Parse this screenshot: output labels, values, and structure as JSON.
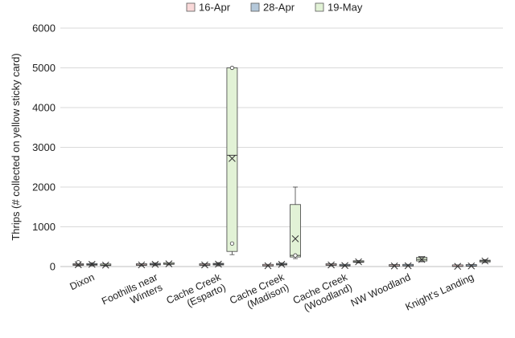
{
  "chart_data": {
    "type": "box",
    "ylabel": "Thrips (# collected on yellow sticky card)",
    "ylim": [
      0,
      6000
    ],
    "yticks": [
      "0",
      "1000",
      "2000",
      "3000",
      "4000",
      "5000",
      "6000"
    ],
    "grid": true,
    "legend_position": "top",
    "categories": [
      [
        "Dixon"
      ],
      [
        "Foothills near",
        "Winters"
      ],
      [
        "Cache Creek",
        "(Esparto)"
      ],
      [
        "Cache Creek",
        "(Madison)"
      ],
      [
        "Cache Creek",
        "(Woodland)"
      ],
      [
        "NW Woodland"
      ],
      [
        "Knight's Landing"
      ]
    ],
    "series": [
      {
        "name": "16-Apr",
        "color": "#f9d9d9",
        "boxes": [
          {
            "min": 15,
            "q1": 30,
            "median": 45,
            "q3": 60,
            "max": 75,
            "mean": 45,
            "outliers": [
              110
            ]
          },
          {
            "min": 20,
            "q1": 30,
            "median": 40,
            "q3": 55,
            "max": 65,
            "mean": 42,
            "outliers": []
          },
          {
            "min": 20,
            "q1": 30,
            "median": 40,
            "q3": 50,
            "max": 60,
            "mean": 40,
            "outliers": []
          },
          {
            "min": 10,
            "q1": 15,
            "median": 20,
            "q3": 25,
            "max": 30,
            "mean": 20,
            "outliers": []
          },
          {
            "min": 20,
            "q1": 30,
            "median": 40,
            "q3": 50,
            "max": 60,
            "mean": 40,
            "outliers": []
          },
          {
            "min": 5,
            "q1": 10,
            "median": 15,
            "q3": 20,
            "max": 25,
            "mean": 15,
            "outliers": []
          },
          {
            "min": 0,
            "q1": 2,
            "median": 5,
            "q3": 8,
            "max": 10,
            "mean": 5,
            "outliers": []
          }
        ]
      },
      {
        "name": "28-Apr",
        "color": "#b4c8da",
        "boxes": [
          {
            "min": 20,
            "q1": 35,
            "median": 50,
            "q3": 75,
            "max": 95,
            "mean": 55,
            "outliers": []
          },
          {
            "min": 25,
            "q1": 40,
            "median": 55,
            "q3": 70,
            "max": 90,
            "mean": 55,
            "outliers": []
          },
          {
            "min": 20,
            "q1": 40,
            "median": 60,
            "q3": 80,
            "max": 100,
            "mean": 60,
            "outliers": []
          },
          {
            "min": 30,
            "q1": 40,
            "median": 55,
            "q3": 70,
            "max": 90,
            "mean": 55,
            "outliers": []
          },
          {
            "min": 10,
            "q1": 15,
            "median": 25,
            "q3": 30,
            "max": 40,
            "mean": 25,
            "outliers": []
          },
          {
            "min": 10,
            "q1": 15,
            "median": 20,
            "q3": 25,
            "max": 30,
            "mean": 20,
            "outliers": []
          },
          {
            "min": 5,
            "q1": 10,
            "median": 15,
            "q3": 20,
            "max": 25,
            "mean": 15,
            "outliers": []
          }
        ]
      },
      {
        "name": "19-May",
        "color": "#e2f2d6",
        "boxes": [
          {
            "min": 15,
            "q1": 25,
            "median": 35,
            "q3": 45,
            "max": 55,
            "mean": 35,
            "outliers": []
          },
          {
            "min": 40,
            "q1": 55,
            "median": 65,
            "q3": 80,
            "max": 95,
            "mean": 68,
            "outliers": []
          },
          {
            "min": 300,
            "q1": 380,
            "median": 2800,
            "q3": 5000,
            "max": 5000,
            "mean": 2720,
            "outliers": [
              580,
              5000
            ]
          },
          {
            "min": 200,
            "q1": 240,
            "median": 280,
            "q3": 1560,
            "max": 2000,
            "mean": 700,
            "outliers": [
              280
            ]
          },
          {
            "min": 90,
            "q1": 105,
            "median": 120,
            "q3": 135,
            "max": 150,
            "mean": 120,
            "outliers": []
          },
          {
            "min": 120,
            "q1": 140,
            "median": 180,
            "q3": 230,
            "max": 250,
            "mean": 180,
            "outliers": []
          },
          {
            "min": 100,
            "q1": 115,
            "median": 140,
            "q3": 160,
            "max": 175,
            "mean": 140,
            "outliers": []
          }
        ]
      }
    ]
  }
}
